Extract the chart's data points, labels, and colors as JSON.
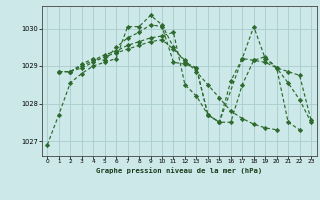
{
  "title": "Graphe pression niveau de la mer (hPa)",
  "bg_color": "#cce8e8",
  "grid_color": "#aacccc",
  "line_color": "#2d6a2d",
  "marker_color": "#2d6a2d",
  "xlim": [
    -0.5,
    23.5
  ],
  "ylim": [
    1026.6,
    1030.6
  ],
  "yticks": [
    1027,
    1028,
    1029,
    1030
  ],
  "xticks": [
    0,
    1,
    2,
    3,
    4,
    5,
    6,
    7,
    8,
    9,
    10,
    11,
    12,
    13,
    14,
    15,
    16,
    17,
    18,
    19,
    20,
    21,
    22,
    23
  ],
  "series": [
    {
      "x": [
        0,
        1,
        2,
        3,
        4,
        5,
        6,
        7,
        8,
        9,
        10,
        11,
        12,
        13,
        14,
        15,
        17,
        18,
        19,
        20,
        21,
        22
      ],
      "y": [
        1026.9,
        1027.7,
        1028.55,
        1028.8,
        1029.0,
        1029.1,
        1029.2,
        1030.05,
        1030.05,
        1030.35,
        1030.1,
        1029.5,
        1029.1,
        1028.95,
        1027.7,
        1027.5,
        1029.2,
        1030.05,
        1029.2,
        1028.95,
        1027.5,
        1027.3
      ]
    },
    {
      "x": [
        1,
        2,
        3,
        4,
        5,
        6,
        7,
        8,
        9,
        10,
        11,
        12,
        13,
        14,
        15,
        16,
        17,
        18,
        19,
        20,
        21,
        22,
        23
      ],
      "y": [
        1028.85,
        1028.85,
        1029.05,
        1029.2,
        1029.15,
        1029.5,
        1029.75,
        1029.9,
        1030.1,
        1030.05,
        1029.1,
        1029.05,
        1028.95,
        1027.7,
        1027.5,
        1028.6,
        1029.2,
        1029.15,
        1029.1,
        1028.95,
        1028.85,
        1028.75,
        1027.55
      ]
    },
    {
      "x": [
        1,
        2,
        3,
        4,
        5,
        6,
        7,
        8,
        9,
        10,
        11,
        12,
        13,
        14,
        15,
        16,
        17,
        18,
        19,
        20,
        21,
        22,
        23
      ],
      "y": [
        1028.85,
        1028.85,
        1029.0,
        1029.15,
        1029.3,
        1029.4,
        1029.55,
        1029.65,
        1029.75,
        1029.8,
        1029.9,
        1028.5,
        1028.2,
        1027.7,
        1027.5,
        1027.5,
        1028.5,
        1029.15,
        1029.25,
        1028.95,
        1028.55,
        1028.1,
        1027.5
      ]
    },
    {
      "x": [
        1,
        2,
        3,
        4,
        5,
        6,
        7,
        8,
        9,
        10,
        11,
        12,
        13,
        14,
        15,
        16,
        17,
        18,
        19,
        20
      ],
      "y": [
        1028.85,
        1028.85,
        1028.95,
        1029.1,
        1029.25,
        1029.35,
        1029.45,
        1029.55,
        1029.65,
        1029.7,
        1029.45,
        1029.15,
        1028.85,
        1028.5,
        1028.15,
        1027.8,
        1027.6,
        1027.45,
        1027.35,
        1027.3
      ]
    }
  ]
}
